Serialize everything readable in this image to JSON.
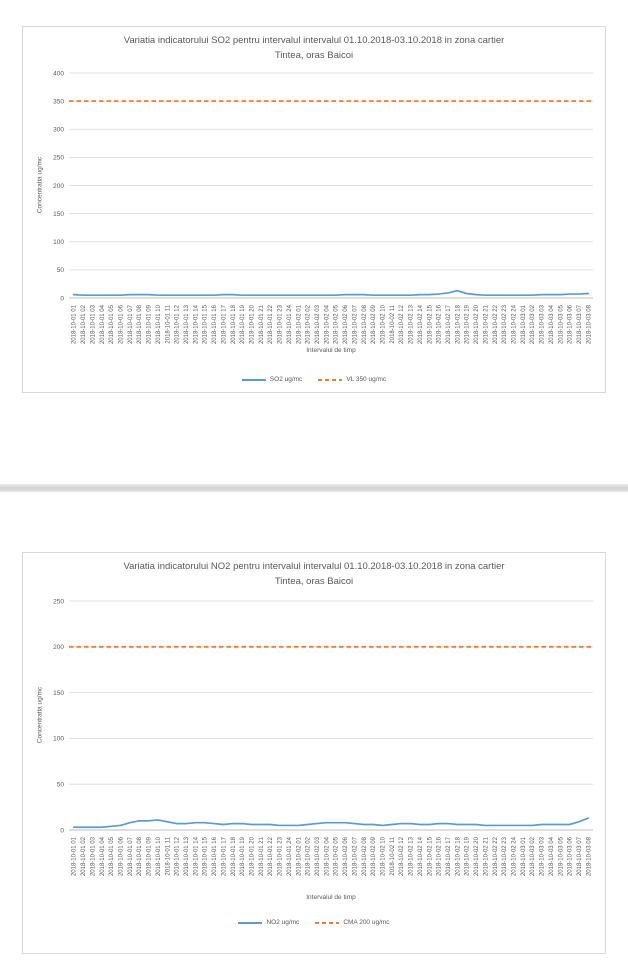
{
  "chart_data": [
    {
      "type": "line",
      "title": "Variatia indicatorului SO2 pentru intervalul intervalul 01.10.2018-03.10.2018 in zona cartier Tintea, oras Baicoi",
      "title_lines": [
        "Variatia indicatorului SO2 pentru intervalul intervalul 01.10.2018-03.10.2018 in zona cartier",
        "Tintea, oras Baicoi"
      ],
      "xlabel": "Intervalul de timp",
      "ylabel": "Concentratia ug/mc",
      "ylim": [
        0,
        400
      ],
      "yticks": [
        0,
        50,
        100,
        150,
        200,
        250,
        300,
        350,
        400
      ],
      "grid": true,
      "legend_position": "bottom",
      "grid_color": "#d9d9d9",
      "axis_color": "#bfbfbf",
      "text_color": "#595959",
      "categories": [
        "2018-10-01 01",
        "2018-10-01 02",
        "2018-10-01 03",
        "2018-10-01 04",
        "2018-10-01 05",
        "2018-10-01 06",
        "2018-10-01 07",
        "2018-10-01 08",
        "2018-10-01 09",
        "2018-10-01 10",
        "2018-10-01 11",
        "2018-10-01 12",
        "2018-10-01 13",
        "2018-10-01 14",
        "2018-10-01 15",
        "2018-10-01 16",
        "2018-10-01 17",
        "2018-10-01 18",
        "2018-10-01 19",
        "2018-10-01 20",
        "2018-10-01 21",
        "2018-10-01 22",
        "2018-10-01 23",
        "2018-10-01 24",
        "2018-10-02 01",
        "2018-10-02 02",
        "2018-10-02 03",
        "2018-10-02 04",
        "2018-10-02 05",
        "2018-10-02 06",
        "2018-10-02 07",
        "2018-10-02 08",
        "2018-10-02 09",
        "2018-10-02 10",
        "2018-10-02 11",
        "2018-10-02 12",
        "2018-10-02 13",
        "2018-10-02 14",
        "2018-10-02 15",
        "2018-10-02 16",
        "2018-10-02 17",
        "2018-10-02 18",
        "2018-10-02 19",
        "2018-10-02 20",
        "2018-10-02 21",
        "2018-10-02 22",
        "2018-10-02 23",
        "2018-10-02 24",
        "2018-10-03 01",
        "2018-10-03 02",
        "2018-10-03 03",
        "2018-10-03 04",
        "2018-10-03 05",
        "2018-10-03 06",
        "2018-10-03 07",
        "2018-10-03 08"
      ],
      "series": [
        {
          "name": "SO2 ug/mc",
          "type": "line",
          "color": "#5b9bd5",
          "values": [
            6,
            5,
            5,
            5,
            5,
            5,
            6,
            6,
            6,
            5,
            5,
            5,
            5,
            5,
            5,
            5,
            6,
            6,
            5,
            5,
            5,
            5,
            5,
            5,
            5,
            5,
            5,
            5,
            5,
            6,
            6,
            6,
            5,
            5,
            5,
            5,
            5,
            6,
            6,
            7,
            9,
            13,
            8,
            6,
            5,
            5,
            5,
            5,
            5,
            5,
            6,
            6,
            6,
            7,
            7,
            8
          ]
        },
        {
          "name": "VL 350 ug/mc",
          "type": "dashed-constant",
          "color": "#ed7d31",
          "value": 350
        }
      ]
    },
    {
      "type": "line",
      "title": "Variatia indicatorului NO2 pentru intervalul intervalul 01.10.2018-03.10.2018 in zona cartier Tintea, oras Baicoi",
      "title_lines": [
        "Variatia indicatorului NO2 pentru intervalul intervalul 01.10.2018-03.10.2018 in zona cartier",
        "Tintea, oras Baicoi"
      ],
      "xlabel": "Intervalul de timp",
      "ylabel": "Concentratia ug/mc",
      "ylim": [
        0,
        250
      ],
      "yticks": [
        0,
        50,
        100,
        150,
        200,
        250
      ],
      "grid": true,
      "legend_position": "bottom",
      "grid_color": "#d9d9d9",
      "axis_color": "#bfbfbf",
      "text_color": "#595959",
      "categories": [
        "2018-10-01 01",
        "2018-10-01 02",
        "2018-10-01 03",
        "2018-10-01 04",
        "2018-10-01 05",
        "2018-10-01 06",
        "2018-10-01 07",
        "2018-10-01 08",
        "2018-10-01 09",
        "2018-10-01 10",
        "2018-10-01 11",
        "2018-10-01 12",
        "2018-10-01 13",
        "2018-10-01 14",
        "2018-10-01 15",
        "2018-10-01 16",
        "2018-10-01 17",
        "2018-10-01 18",
        "2018-10-01 19",
        "2018-10-01 20",
        "2018-10-01 21",
        "2018-10-01 22",
        "2018-10-01 23",
        "2018-10-01 24",
        "2018-10-02 01",
        "2018-10-02 02",
        "2018-10-02 03",
        "2018-10-02 04",
        "2018-10-02 05",
        "2018-10-02 06",
        "2018-10-02 07",
        "2018-10-02 08",
        "2018-10-02 09",
        "2018-10-02 10",
        "2018-10-02 11",
        "2018-10-02 12",
        "2018-10-02 13",
        "2018-10-02 14",
        "2018-10-02 15",
        "2018-10-02 16",
        "2018-10-02 17",
        "2018-10-02 18",
        "2018-10-02 19",
        "2018-10-02 20",
        "2018-10-02 21",
        "2018-10-02 22",
        "2018-10-02 23",
        "2018-10-02 24",
        "2018-10-03 01",
        "2018-10-03 02",
        "2018-10-03 03",
        "2018-10-03 04",
        "2018-10-03 05",
        "2018-10-03 06",
        "2018-10-03 07",
        "2018-10-03 08"
      ],
      "series": [
        {
          "name": "NO2 ug/mc",
          "type": "line",
          "color": "#5b9bd5",
          "values": [
            3,
            3,
            3,
            3,
            4,
            5,
            8,
            10,
            10,
            11,
            9,
            7,
            7,
            8,
            8,
            7,
            6,
            7,
            7,
            6,
            6,
            6,
            5,
            5,
            5,
            6,
            7,
            8,
            8,
            8,
            7,
            6,
            6,
            5,
            6,
            7,
            7,
            6,
            6,
            7,
            7,
            6,
            6,
            6,
            5,
            5,
            5,
            5,
            5,
            5,
            6,
            6,
            6,
            6,
            9,
            13
          ]
        },
        {
          "name": "CMA 200 ug/mc",
          "type": "dashed-constant",
          "color": "#ed7d31",
          "value": 200
        }
      ]
    }
  ]
}
